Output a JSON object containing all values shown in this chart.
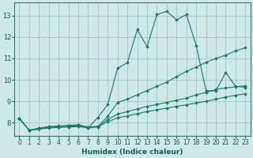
{
  "xlabel": "Humidex (Indice chaleur)",
  "ylabel": "",
  "bg_color": "#cde8e5",
  "grid_color": "#a8ccca",
  "line_color": "#1a7a6e",
  "xlim": [
    -0.5,
    23.5
  ],
  "ylim": [
    7.4,
    13.6
  ],
  "yticks": [
    8,
    9,
    10,
    11,
    12,
    13
  ],
  "xticks": [
    0,
    1,
    2,
    3,
    4,
    5,
    6,
    7,
    8,
    9,
    10,
    11,
    12,
    13,
    14,
    15,
    16,
    17,
    18,
    19,
    20,
    21,
    22,
    23
  ],
  "series": [
    {
      "x": [
        0,
        1,
        2,
        3,
        4,
        5,
        6,
        7,
        8,
        9,
        10,
        11,
        12,
        13,
        14,
        15,
        16,
        17,
        18,
        19,
        20,
        21,
        22,
        23
      ],
      "y": [
        8.2,
        7.65,
        7.7,
        7.8,
        7.8,
        7.82,
        7.9,
        7.75,
        8.25,
        8.85,
        10.55,
        10.8,
        12.35,
        11.55,
        13.05,
        13.2,
        12.8,
        13.05,
        11.6,
        9.5,
        9.48,
        10.35,
        9.7,
        9.65
      ]
    },
    {
      "x": [
        0,
        1,
        2,
        3,
        4,
        5,
        6,
        7,
        8,
        9,
        10,
        11,
        12,
        13,
        14,
        15,
        16,
        17,
        18,
        19,
        20,
        21,
        22,
        23
      ],
      "y": [
        8.2,
        7.65,
        7.75,
        7.82,
        7.85,
        7.88,
        7.9,
        7.8,
        7.82,
        8.3,
        8.95,
        9.1,
        9.3,
        9.5,
        9.7,
        9.9,
        10.15,
        10.4,
        10.6,
        10.82,
        11.0,
        11.15,
        11.35,
        11.5
      ]
    },
    {
      "x": [
        0,
        1,
        2,
        3,
        4,
        5,
        6,
        7,
        8,
        9,
        10,
        11,
        12,
        13,
        14,
        15,
        16,
        17,
        18,
        19,
        20,
        21,
        22,
        23
      ],
      "y": [
        8.2,
        7.65,
        7.72,
        7.78,
        7.8,
        7.83,
        7.85,
        7.78,
        7.83,
        8.15,
        8.4,
        8.52,
        8.64,
        8.76,
        8.85,
        8.95,
        9.05,
        9.15,
        9.3,
        9.42,
        9.55,
        9.62,
        9.68,
        9.72
      ]
    },
    {
      "x": [
        0,
        1,
        2,
        3,
        4,
        5,
        6,
        7,
        8,
        9,
        10,
        11,
        12,
        13,
        14,
        15,
        16,
        17,
        18,
        19,
        20,
        21,
        22,
        23
      ],
      "y": [
        8.2,
        7.65,
        7.7,
        7.75,
        7.78,
        7.8,
        7.82,
        7.76,
        7.8,
        8.05,
        8.22,
        8.32,
        8.42,
        8.52,
        8.6,
        8.68,
        8.76,
        8.84,
        8.92,
        9.0,
        9.1,
        9.2,
        9.28,
        9.35
      ]
    }
  ]
}
